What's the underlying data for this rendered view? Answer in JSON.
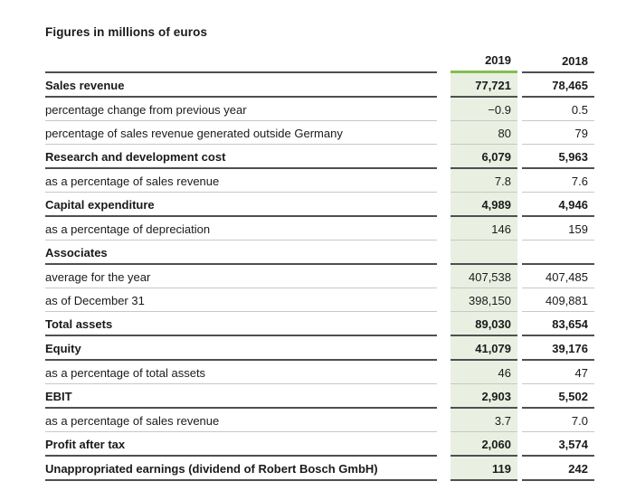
{
  "title": "Figures in millions of euros",
  "colors": {
    "accent_green": "#86bd50",
    "highlight_column_bg": "#e9f0e2",
    "strong_rule": "#4f4f4f",
    "light_rule": "#c8c8c8",
    "text": "#1a1a1a"
  },
  "table": {
    "columns": [
      "2019",
      "2018"
    ],
    "highlighted_column": "2019",
    "rows": [
      {
        "label": "Sales revenue",
        "v2019": "77,721",
        "v2018": "78,465",
        "strong": true
      },
      {
        "label": "percentage change from previous year",
        "v2019": "−0.9",
        "v2018": "0.5",
        "strong": false
      },
      {
        "label": "percentage of sales revenue generated outside Germany",
        "v2019": "80",
        "v2018": "79",
        "strong": false
      },
      {
        "label": "Research and development cost",
        "v2019": "6,079",
        "v2018": "5,963",
        "strong": true
      },
      {
        "label": "as a percentage of sales revenue",
        "v2019": "7.8",
        "v2018": "7.6",
        "strong": false
      },
      {
        "label": "Capital expenditure",
        "v2019": "4,989",
        "v2018": "4,946",
        "strong": true
      },
      {
        "label": "as a percentage of depreciation",
        "v2019": "146",
        "v2018": "159",
        "strong": false
      },
      {
        "label": "Associates",
        "v2019": "",
        "v2018": "",
        "strong": true
      },
      {
        "label": "average for the year",
        "v2019": "407,538",
        "v2018": "407,485",
        "strong": false
      },
      {
        "label": "as of December 31",
        "v2019": "398,150",
        "v2018": "409,881",
        "strong": false
      },
      {
        "label": "Total assets",
        "v2019": "89,030",
        "v2018": "83,654",
        "strong": true
      },
      {
        "label": "Equity",
        "v2019": "41,079",
        "v2018": "39,176",
        "strong": true
      },
      {
        "label": "as a percentage of total assets",
        "v2019": "46",
        "v2018": "47",
        "strong": false
      },
      {
        "label": "EBIT",
        "v2019": "2,903",
        "v2018": "5,502",
        "strong": true
      },
      {
        "label": "as a percentage of sales revenue",
        "v2019": "3.7",
        "v2018": "7.0",
        "strong": false
      },
      {
        "label": "Profit after tax",
        "v2019": "2,060",
        "v2018": "3,574",
        "strong": true
      },
      {
        "label": "Unappropriated earnings (dividend of Robert Bosch GmbH)",
        "v2019": "119",
        "v2018": "242",
        "strong": true
      }
    ]
  }
}
